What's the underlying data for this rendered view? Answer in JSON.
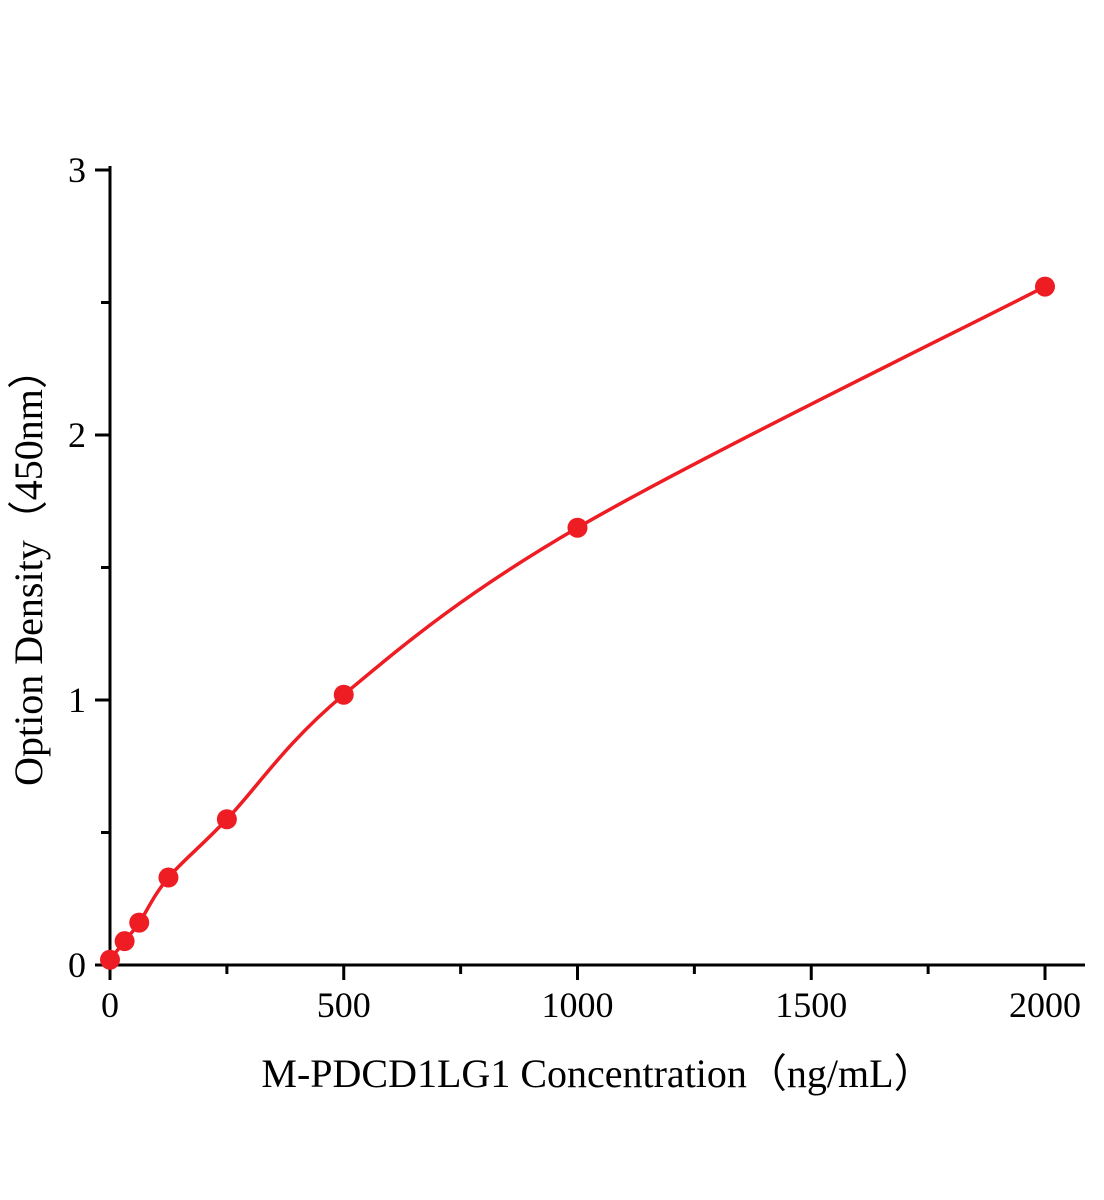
{
  "chart_data": {
    "type": "line",
    "title": "",
    "xlabel": "M-PDCD1LG1 Concentration（ng/mL）",
    "ylabel": "Option Density（450nm）",
    "x": [
      0,
      31.25,
      62.5,
      125,
      250,
      500,
      1000,
      2000
    ],
    "y": [
      0.02,
      0.09,
      0.16,
      0.33,
      0.55,
      1.02,
      1.65,
      2.56
    ],
    "xlim": [
      0,
      2000
    ],
    "ylim": [
      0,
      3
    ],
    "x_major_ticks": [
      0,
      500,
      1000,
      1500,
      2000
    ],
    "x_minor_ticks": [
      250,
      750,
      1250,
      1750
    ],
    "y_major_ticks": [
      0,
      1,
      2,
      3
    ],
    "y_minor_ticks": [
      0.5,
      1.5,
      2.5
    ],
    "legend": [],
    "grid": false,
    "line_color": "#ee1c23",
    "marker_color": "#ee1c23",
    "axis_color": "#000000",
    "background_color": "#ffffff"
  }
}
